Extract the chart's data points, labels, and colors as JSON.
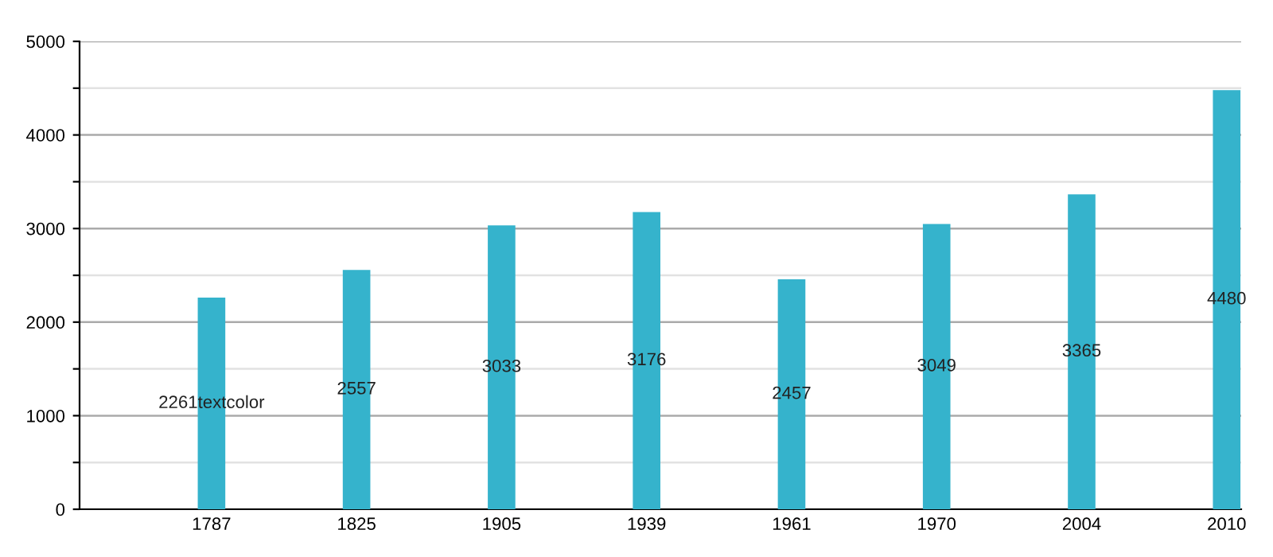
{
  "chart_data": {
    "type": "bar",
    "categories": [
      "1787",
      "1825",
      "1905",
      "1939",
      "1961",
      "1970",
      "2004",
      "2010"
    ],
    "values": [
      2261,
      2557,
      3033,
      3176,
      2457,
      3049,
      3365,
      4480
    ],
    "value_labels": [
      "2261textcolor",
      "2557",
      "3033",
      "3176",
      "2457",
      "3049",
      "3365",
      "4480"
    ],
    "color": "#35b3cc",
    "ylim": [
      0,
      5000
    ],
    "yticks": [
      0,
      {
        "value": 500,
        "label": null
      },
      1000,
      {
        "value": 1500,
        "label": null
      },
      2000,
      {
        "value": 2500,
        "label": null
      },
      3000,
      {
        "value": 3500,
        "label": null
      },
      4000,
      {
        "value": 4500,
        "label": null
      },
      5000
    ],
    "grid": "y"
  }
}
